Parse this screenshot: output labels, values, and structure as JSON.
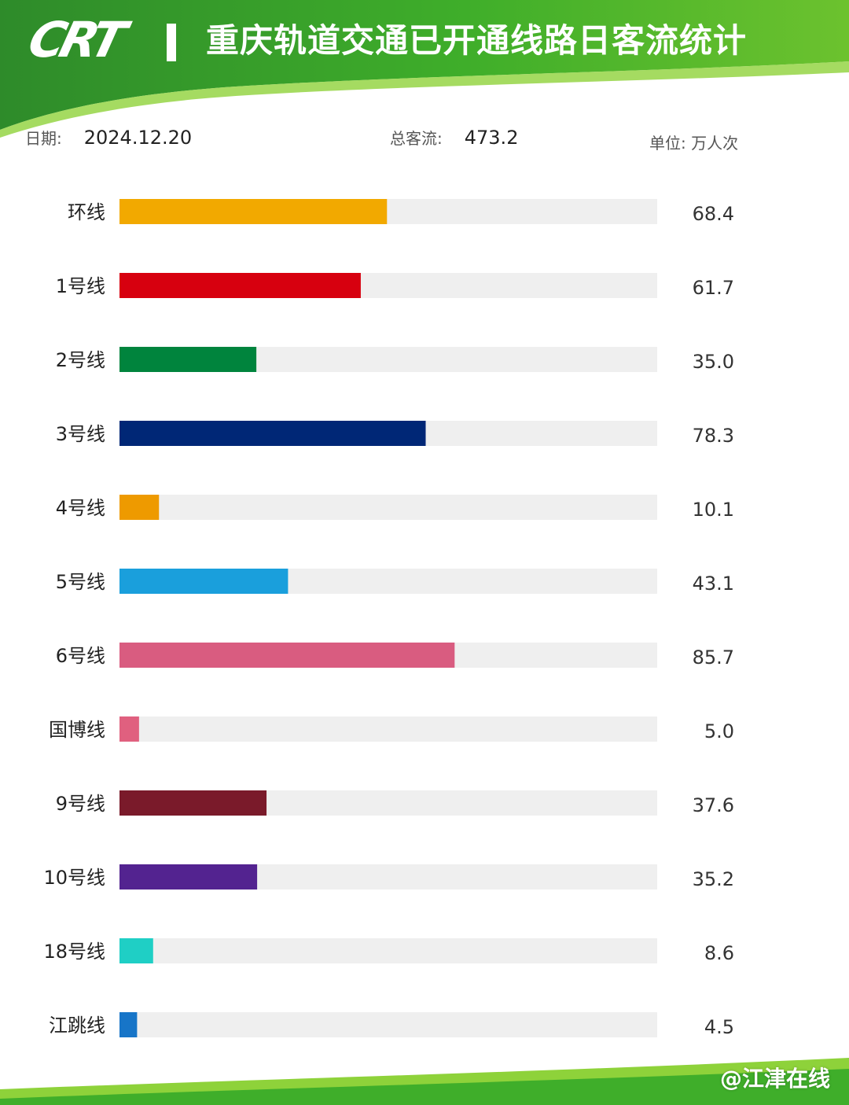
{
  "header": {
    "logo_text": "CRT",
    "title": "重庆轨道交通已开通线路日客流统计"
  },
  "info": {
    "date_label": "日期:",
    "date_value": "2024.12.20",
    "total_label": "总客流:",
    "total_value": "473.2",
    "unit": "单位: 万人次"
  },
  "colors": {
    "banner_green": "#3fae2a",
    "banner_light": "#7cc832",
    "track": "#efefef"
  },
  "chart_data": {
    "type": "bar",
    "orientation": "horizontal",
    "title": "重庆轨道交通已开通线路日客流统计",
    "xlabel": "",
    "ylabel": "",
    "unit": "万人次",
    "xlim": [
      0,
      137.5
    ],
    "grid": false,
    "categories": [
      "环线",
      "1号线",
      "2号线",
      "3号线",
      "4号线",
      "5号线",
      "6号线",
      "国博线",
      "9号线",
      "10号线",
      "18号线",
      "江跳线"
    ],
    "values": [
      68.4,
      61.7,
      35.0,
      78.3,
      10.1,
      43.1,
      85.7,
      5.0,
      37.6,
      35.2,
      8.6,
      4.5
    ],
    "value_labels": [
      "68.4",
      "61.7",
      "35.0",
      "78.3",
      "10.1",
      "43.1",
      "85.7",
      "5.0",
      "37.6",
      "35.2",
      "8.6",
      "4.5"
    ],
    "bar_colors": [
      "#f2a900",
      "#d7000f",
      "#00843d",
      "#002776",
      "#ee9a00",
      "#1a9fdc",
      "#d95c80",
      "#e0607f",
      "#7a1a2a",
      "#532390",
      "#1fcfc5",
      "#1775c8"
    ]
  },
  "watermark": "@江津在线"
}
